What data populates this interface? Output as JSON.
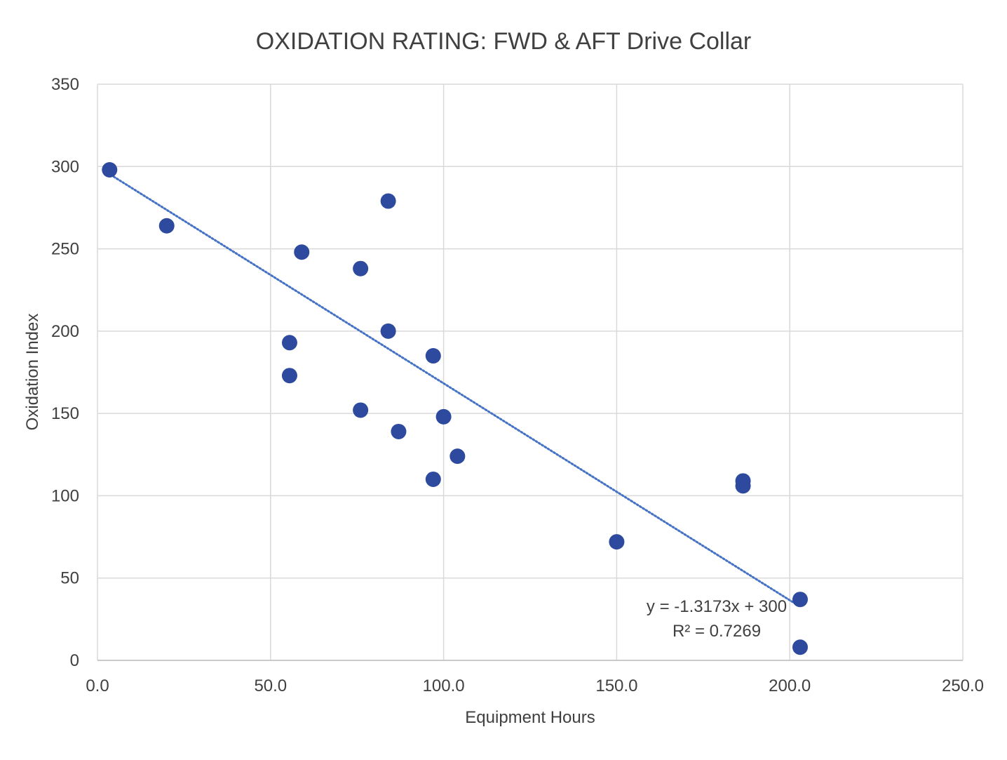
{
  "chart_data": {
    "type": "scatter",
    "title": "OXIDATION RATING: FWD & AFT Drive Collar",
    "xlabel": "Equipment Hours",
    "ylabel": "Oxidation Index",
    "xlim": [
      0,
      250
    ],
    "ylim": [
      0,
      350
    ],
    "x_ticks": [
      "0.0",
      "50.0",
      "100.0",
      "150.0",
      "200.0",
      "250.0"
    ],
    "y_ticks": [
      "0",
      "50",
      "100",
      "150",
      "200",
      "250",
      "300",
      "350"
    ],
    "grid": true,
    "marker_color": "#2E4A9E",
    "trendline_color": "#4472C4",
    "points": [
      {
        "x": 3.5,
        "y": 298
      },
      {
        "x": 20.0,
        "y": 264
      },
      {
        "x": 55.5,
        "y": 193
      },
      {
        "x": 55.5,
        "y": 173
      },
      {
        "x": 59.0,
        "y": 248
      },
      {
        "x": 76.0,
        "y": 238
      },
      {
        "x": 76.0,
        "y": 152
      },
      {
        "x": 84.0,
        "y": 279
      },
      {
        "x": 84.0,
        "y": 200
      },
      {
        "x": 87.0,
        "y": 139
      },
      {
        "x": 97.0,
        "y": 185
      },
      {
        "x": 97.0,
        "y": 110
      },
      {
        "x": 100.0,
        "y": 148
      },
      {
        "x": 104.0,
        "y": 124
      },
      {
        "x": 150.0,
        "y": 72
      },
      {
        "x": 186.5,
        "y": 109
      },
      {
        "x": 186.5,
        "y": 106
      },
      {
        "x": 203.0,
        "y": 37
      },
      {
        "x": 203.0,
        "y": 8
      }
    ],
    "trendline": {
      "type": "linear",
      "slope": -1.3173,
      "intercept": 300,
      "x_range": [
        3.0,
        203.0
      ],
      "equation": "y = -1.3173x + 300",
      "r2_label": "R² = 0.7269"
    }
  }
}
